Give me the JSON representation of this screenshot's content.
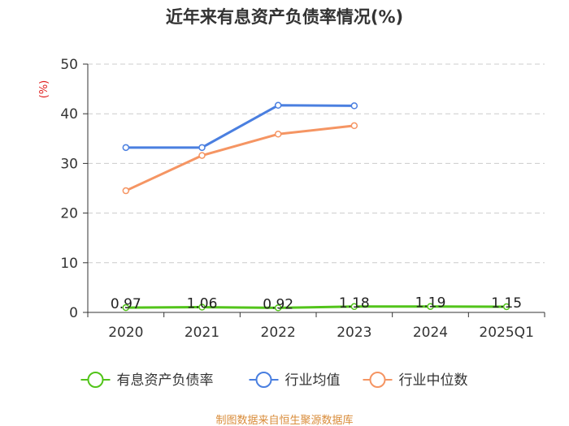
{
  "chart_data": {
    "type": "line",
    "title": "近年来有息资产负债率情况(%)",
    "ylabel": "(%)",
    "xlabel": "",
    "categories": [
      "2020",
      "2021",
      "2022",
      "2023",
      "2024",
      "2025Q1"
    ],
    "ylim": [
      0,
      50
    ],
    "yticks": [
      0,
      10,
      20,
      30,
      40,
      50
    ],
    "grid": true,
    "legend_position": "bottom",
    "series": [
      {
        "name": "有息资产负债率",
        "color": "#52c41a",
        "values": [
          0.97,
          1.06,
          0.92,
          1.18,
          1.19,
          1.15
        ],
        "labels": [
          "0.97",
          "1.06",
          "0.92",
          "1.18",
          "1.19",
          "1.15"
        ]
      },
      {
        "name": "行业均值",
        "color": "#4a7fe0",
        "values": [
          33.2,
          33.2,
          41.7,
          41.6,
          null,
          null
        ]
      },
      {
        "name": "行业中位数",
        "color": "#f59563",
        "values": [
          24.5,
          31.6,
          35.9,
          37.6,
          null,
          null
        ]
      }
    ],
    "source": "制图数据来自恒生聚源数据库"
  }
}
